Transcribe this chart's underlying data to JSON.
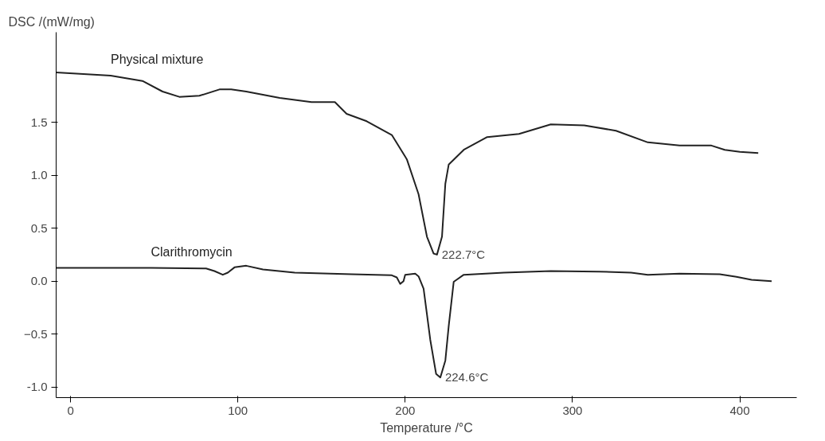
{
  "chart_data": {
    "type": "line",
    "ylabel": "DSC /(mW/mg)",
    "xlabel": "Temperature /°C",
    "xlim": [
      -8.6,
      434
    ],
    "ylim": [
      -1.1,
      2.35
    ],
    "xticks": [
      0,
      100,
      200,
      300,
      400
    ],
    "yticks": [
      {
        "value": -1,
        "label": "-1.0"
      },
      -0.5,
      {
        "value": 0,
        "label": "0.0"
      },
      0.5,
      {
        "value": 1,
        "label": "1.0"
      },
      1.5
    ],
    "grid": false,
    "marker": "none",
    "line_style": "solid",
    "series": [
      {
        "name": "Physical mixture",
        "color": "#222222",
        "x": [
          -8.6,
          24,
          43,
          55,
          65,
          77,
          89,
          96,
          105,
          125,
          144,
          158,
          165,
          177,
          192,
          201,
          208,
          213,
          217,
          219,
          222,
          224,
          226,
          235,
          249,
          268,
          287,
          307,
          326,
          345,
          364,
          383,
          391,
          400,
          411
        ],
        "values": [
          1.97,
          1.94,
          1.89,
          1.79,
          1.74,
          1.75,
          1.81,
          1.81,
          1.79,
          1.73,
          1.69,
          1.69,
          1.58,
          1.51,
          1.38,
          1.15,
          0.82,
          0.42,
          0.26,
          0.25,
          0.42,
          0.92,
          1.1,
          1.24,
          1.36,
          1.39,
          1.48,
          1.47,
          1.42,
          1.31,
          1.28,
          1.28,
          1.24,
          1.22,
          1.21
        ]
      },
      {
        "name": "Clarithromycin",
        "color": "#222222",
        "x": [
          -8.6,
          48,
          81,
          86,
          91,
          94,
          98,
          105,
          115,
          134,
          168,
          192,
          195,
          197,
          199,
          200,
          206,
          208,
          211,
          215,
          218.5,
          221,
          224,
          226,
          229,
          235,
          259,
          287,
          316,
          335,
          345,
          364,
          388,
          398,
          407,
          419
        ],
        "values": [
          0.125,
          0.125,
          0.12,
          0.095,
          0.06,
          0.08,
          0.13,
          0.145,
          0.11,
          0.08,
          0.065,
          0.055,
          0.035,
          -0.026,
          0,
          0.06,
          0.07,
          0.045,
          -0.071,
          -0.555,
          -0.877,
          -0.91,
          -0.75,
          -0.426,
          -0.006,
          0.06,
          0.08,
          0.095,
          0.09,
          0.08,
          0.06,
          0.07,
          0.065,
          0.04,
          0.013,
          0
        ]
      }
    ],
    "annotations": [
      {
        "text": "222.7°C",
        "x": 219,
        "y": 0.25
      },
      {
        "text": "224.6°C",
        "x": 221,
        "y": -0.91
      }
    ]
  }
}
